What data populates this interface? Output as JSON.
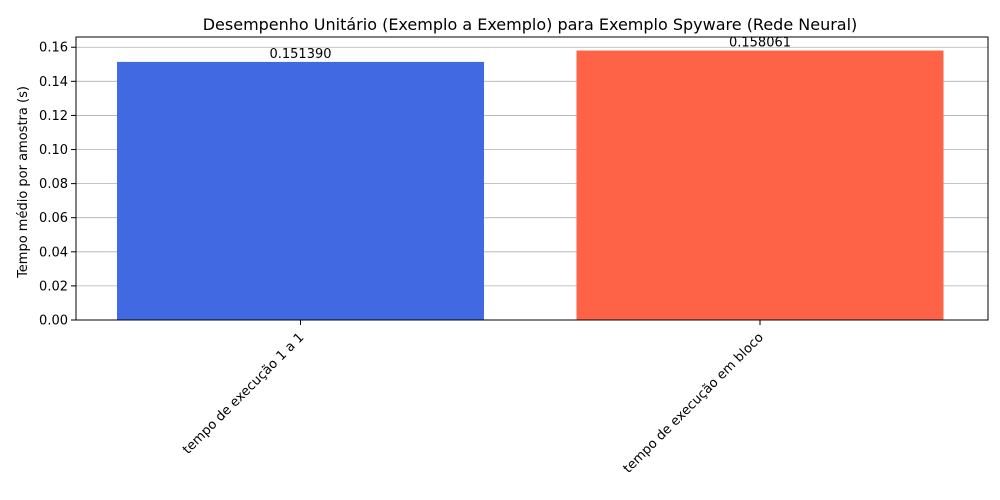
{
  "chart_data": {
    "type": "bar",
    "title": "Desempenho Unitário (Exemplo a Exemplo) para Exemplo Spyware (Rede Neural)",
    "xlabel": "",
    "ylabel": "Tempo médio por amostra (s)",
    "categories": [
      "tempo de execução 1 a 1",
      "tempo de execução em bloco"
    ],
    "values": [
      0.15139,
      0.158061
    ],
    "value_labels": [
      "0.151390",
      "0.158061"
    ],
    "colors": [
      "#4169e1",
      "#ff6347"
    ],
    "ylim": [
      0,
      0.166
    ],
    "yticks": [
      0.0,
      0.02,
      0.04,
      0.06,
      0.08,
      0.1,
      0.12,
      0.14,
      0.16
    ],
    "ytick_labels": [
      "0.00",
      "0.02",
      "0.04",
      "0.06",
      "0.08",
      "0.10",
      "0.12",
      "0.14",
      "0.16"
    ],
    "grid": "y",
    "xtick_rotation": 45
  }
}
